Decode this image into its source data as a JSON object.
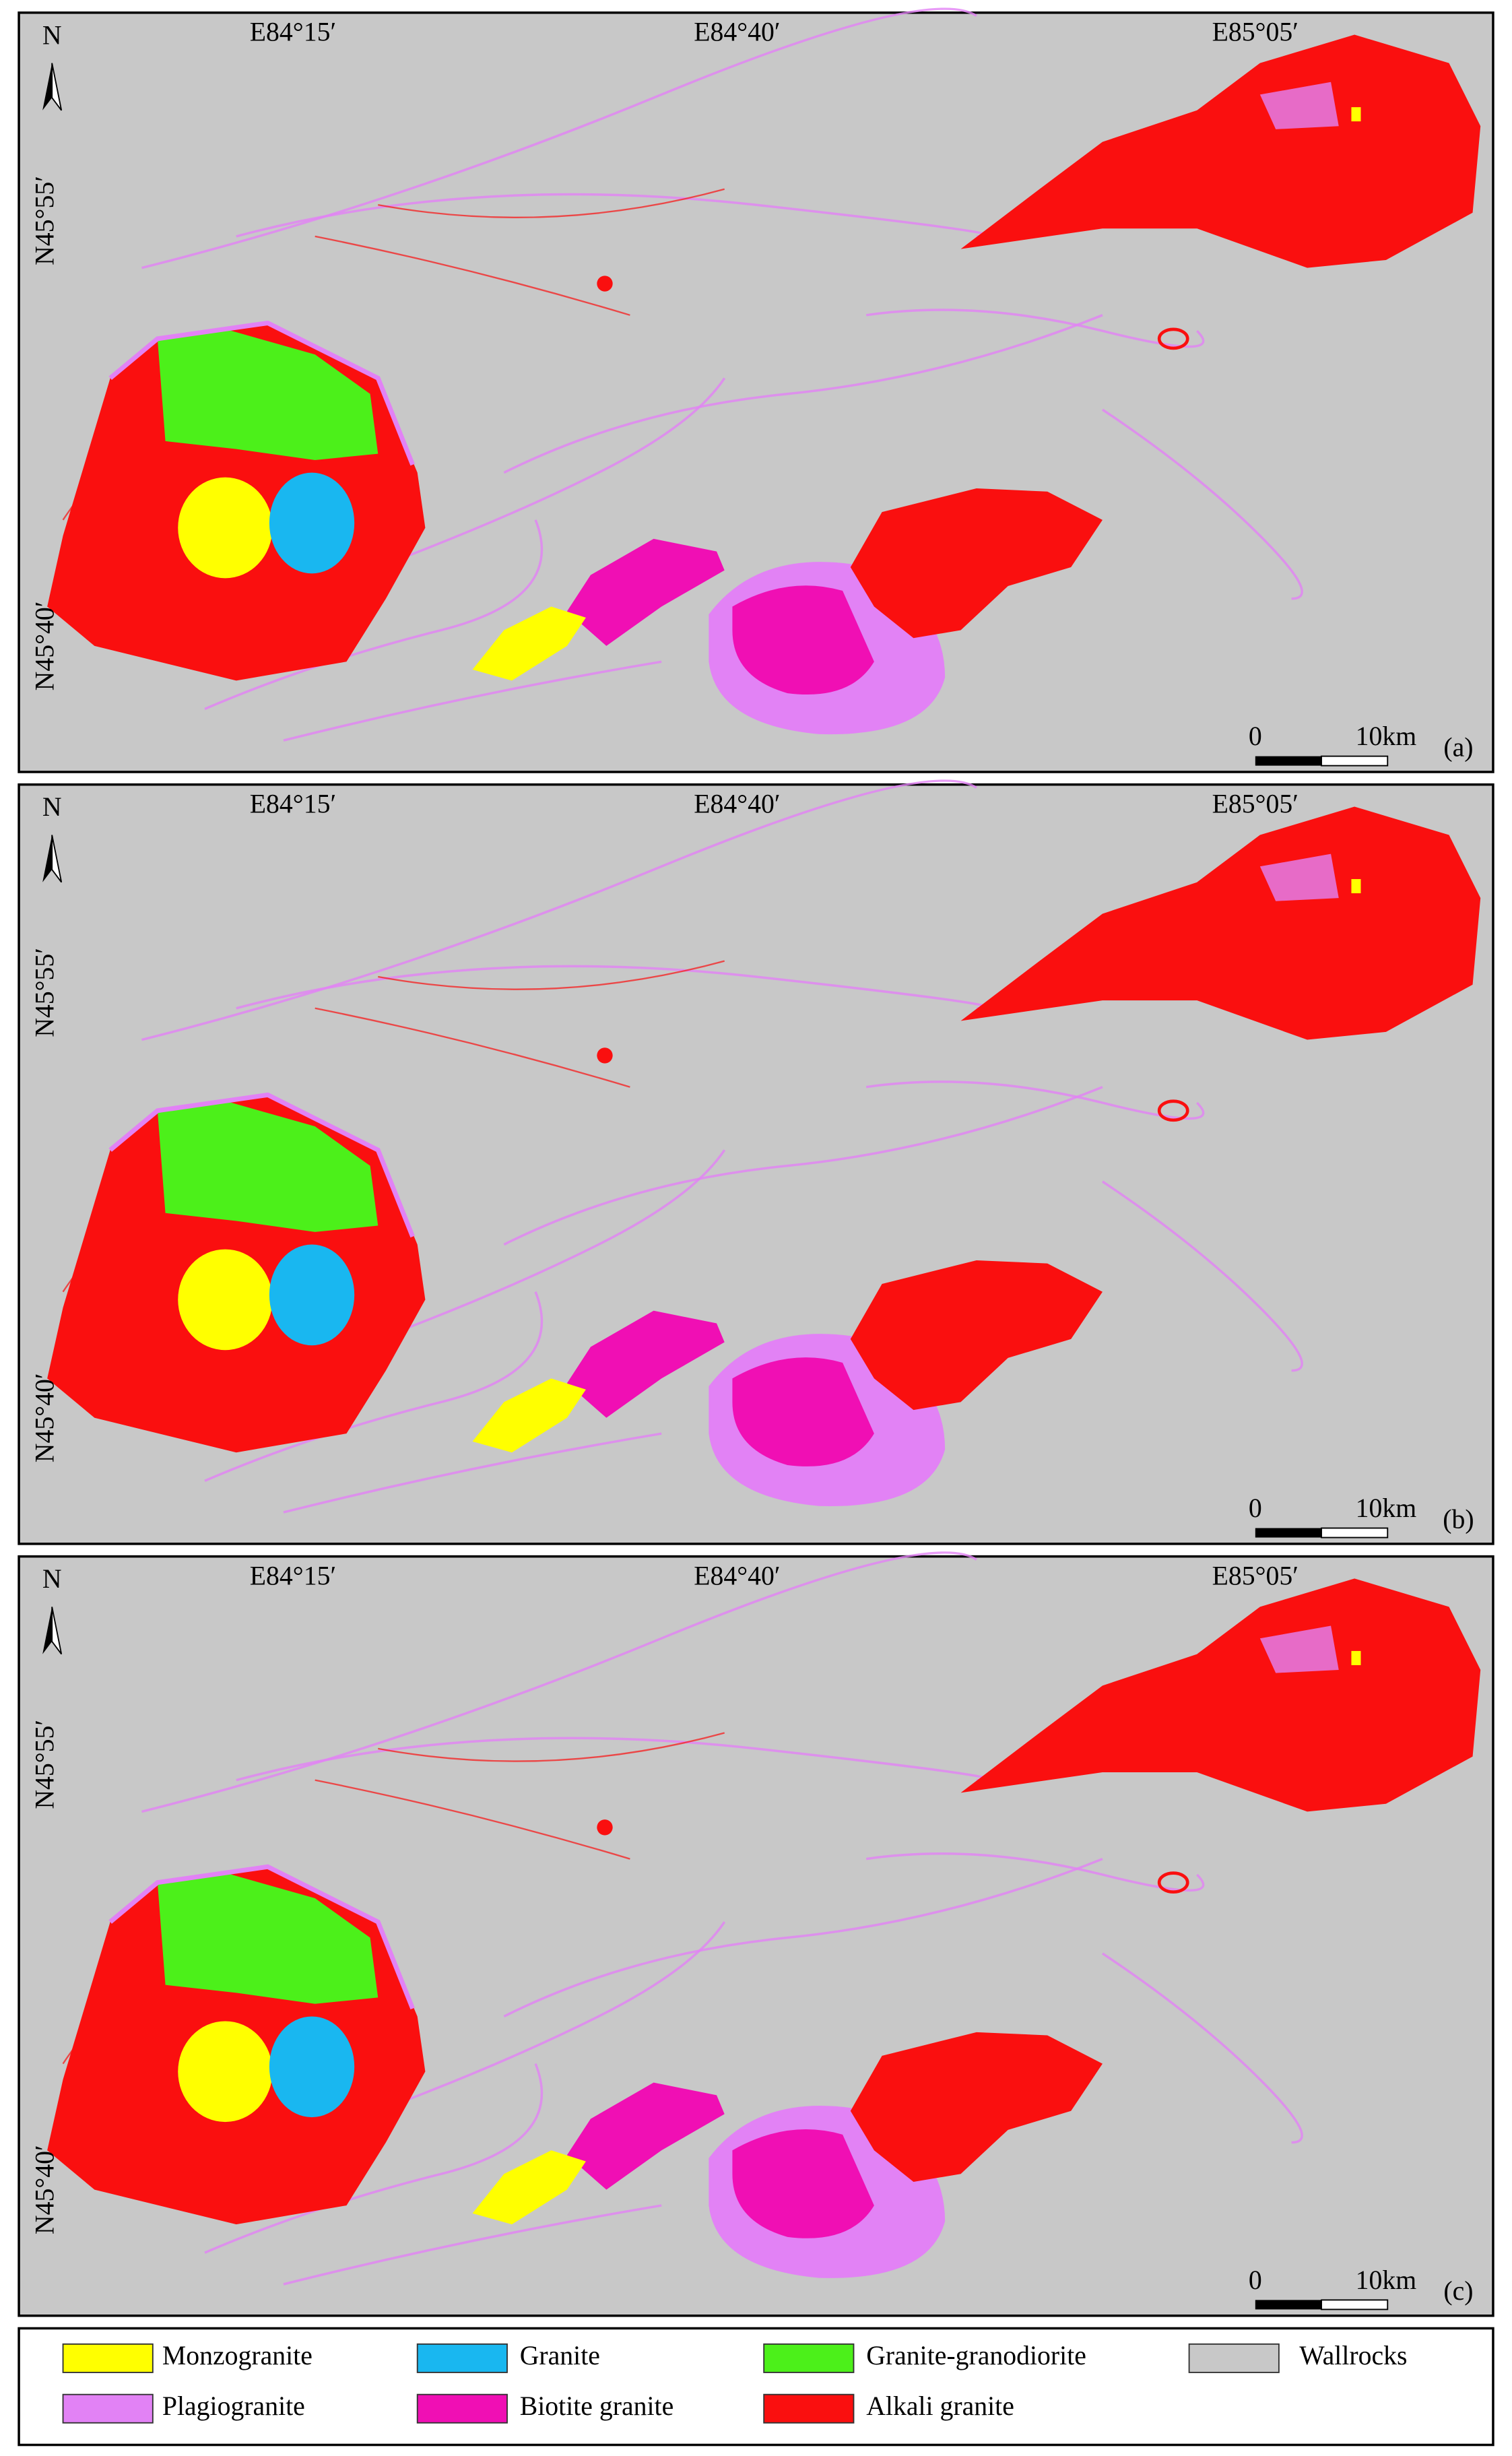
{
  "panels": [
    {
      "label": "(a)",
      "north": "N",
      "lon_labels": [
        "E84°15′",
        "E84°40′",
        "E85°05′"
      ],
      "lat_labels": [
        "N45°55′",
        "N45°40′"
      ],
      "scale_labels": [
        "0",
        "10km"
      ]
    },
    {
      "label": "(b)",
      "north": "N",
      "lon_labels": [
        "E84°15′",
        "E84°40′",
        "E85°05′"
      ],
      "lat_labels": [
        "N45°55′",
        "N45°40′"
      ],
      "scale_labels": [
        "0",
        "10km"
      ]
    },
    {
      "label": "(c)",
      "north": "N",
      "lon_labels": [
        "E84°15′",
        "E84°40′",
        "E85°05′"
      ],
      "lat_labels": [
        "N45°55′",
        "N45°40′"
      ],
      "scale_labels": [
        "0",
        "10km"
      ]
    }
  ],
  "legend": [
    {
      "name": "Monzogranite",
      "color": "#ffff00"
    },
    {
      "name": "Granite",
      "color": "#19b7f0"
    },
    {
      "name": "Granite-granodiorite",
      "color": "#4cf01a"
    },
    {
      "name": "Wallrocks",
      "color": "#c8c8c8"
    },
    {
      "name": "Plagiogranite",
      "color": "#e282f5"
    },
    {
      "name": "Biotite granite",
      "color": "#f00fb4"
    },
    {
      "name": "Alkali granite",
      "color": "#fa0f0f"
    }
  ]
}
